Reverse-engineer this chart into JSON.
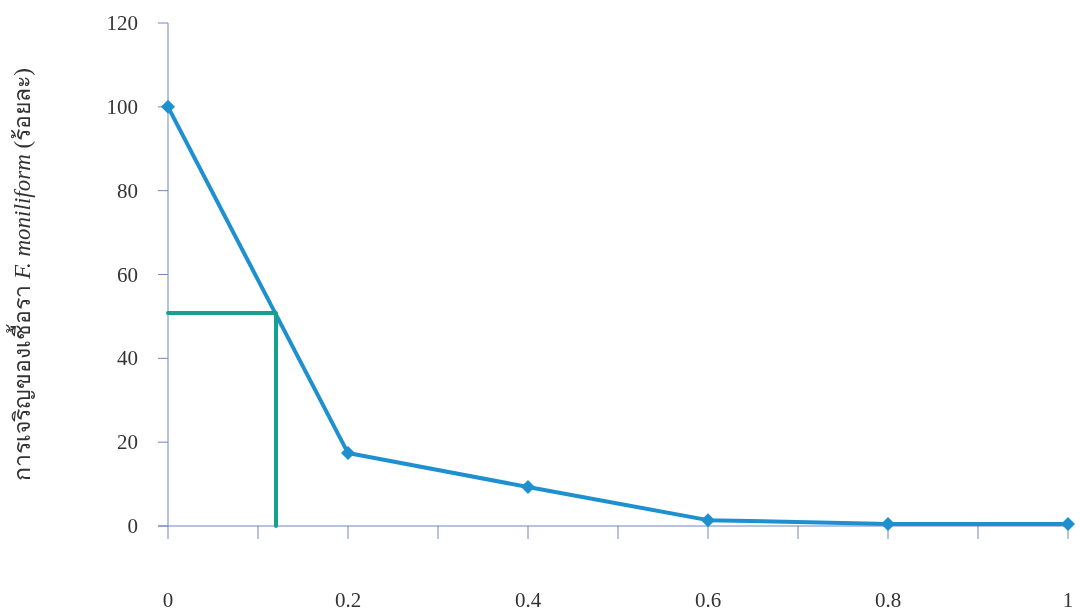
{
  "chart_data": {
    "type": "line",
    "ylabel": "การเจริญของเชื้อรา *F. moniliform* (ร้อยละ)",
    "xlim": [
      0,
      1
    ],
    "ylim": [
      0,
      120
    ],
    "xticks": [
      0,
      {
        "value": 0.1,
        "label": null
      },
      0.2,
      {
        "value": 0.3,
        "label": null
      },
      0.4,
      {
        "value": 0.5,
        "label": null
      },
      0.6,
      {
        "value": 0.7,
        "label": null
      },
      0.8,
      {
        "value": 0.9,
        "label": null
      },
      1
    ],
    "yticks": [
      0,
      20,
      40,
      60,
      80,
      100,
      120
    ],
    "grid": false,
    "marker": "diamond",
    "line_style": "solid",
    "series": [
      {
        "color": "#1e90d0",
        "x": [
          0,
          0.2,
          0.4,
          0.6,
          0.8,
          1
        ],
        "values": [
          100,
          17.4,
          9.3,
          1.4,
          0.5,
          0.5
        ]
      },
      {
        "type": "line",
        "marker": "none",
        "color": "#16a08e",
        "x": [
          0,
          0.12,
          0.12
        ],
        "values": [
          50.8,
          50.8,
          0
        ]
      }
    ]
  }
}
